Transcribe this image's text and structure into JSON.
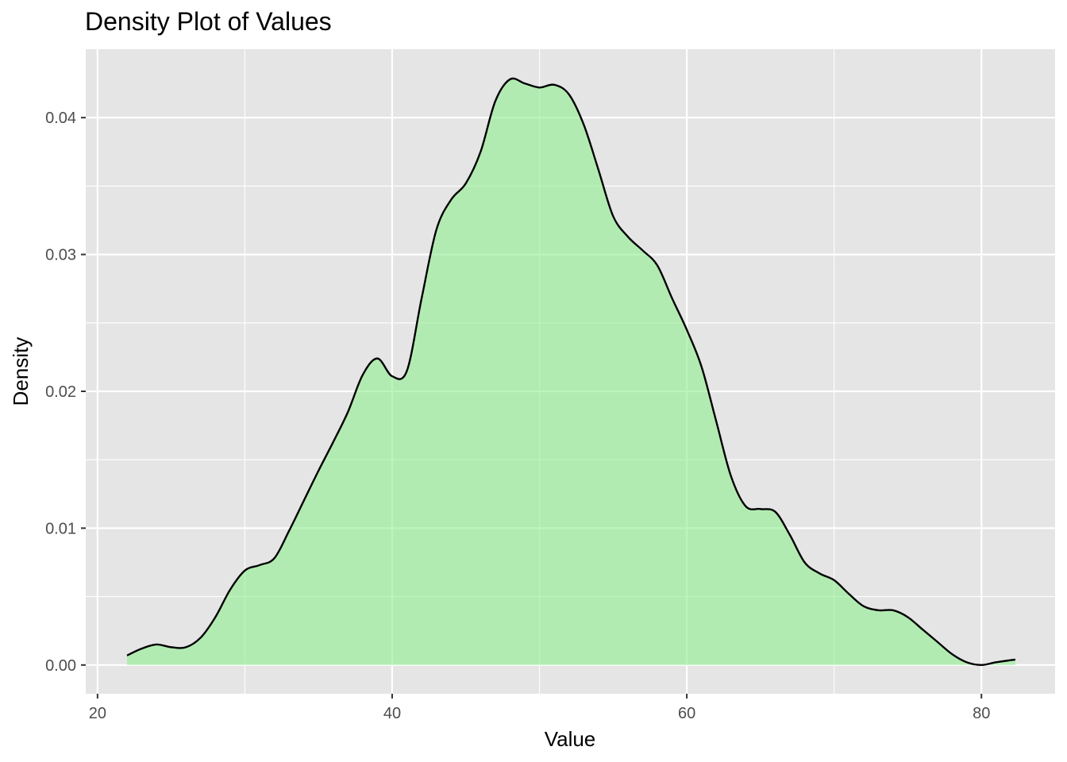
{
  "chart_data": {
    "type": "area",
    "title": "Density Plot of Values",
    "xlabel": "Value",
    "ylabel": "Density",
    "xlim": [
      19.2,
      85.0
    ],
    "ylim": [
      -0.0021,
      0.045
    ],
    "x_ticks": [
      20,
      40,
      60,
      80
    ],
    "x_tick_labels": [
      "20",
      "40",
      "60",
      "80"
    ],
    "x_minor_ticks": [
      30,
      50,
      70
    ],
    "y_ticks": [
      0.0,
      0.01,
      0.02,
      0.03,
      0.04
    ],
    "y_tick_labels": [
      "0.00",
      "0.01",
      "0.02",
      "0.03",
      "0.04"
    ],
    "y_minor_ticks": [
      0.005,
      0.015,
      0.025,
      0.035
    ],
    "grid": true,
    "legend": "none",
    "colors": {
      "panel_background": "#e5e5e5",
      "grid": "#ffffff",
      "fill": "#90ee90",
      "fill_opacity": 0.6,
      "line": "#000000"
    },
    "series": [
      {
        "x": [
          22.0,
          23.0,
          24.0,
          25.0,
          26.0,
          27.0,
          28.0,
          29.0,
          30.0,
          31.0,
          32.0,
          33.0,
          34.0,
          35.0,
          36.0,
          37.0,
          38.0,
          39.0,
          40.0,
          41.0,
          42.0,
          43.0,
          44.0,
          45.0,
          46.0,
          47.0,
          48.0,
          49.0,
          50.0,
          51.0,
          52.0,
          53.0,
          54.0,
          55.0,
          56.0,
          57.0,
          58.0,
          59.0,
          60.0,
          61.0,
          62.0,
          63.0,
          64.0,
          65.0,
          66.0,
          67.0,
          68.0,
          69.0,
          70.0,
          71.0,
          72.0,
          73.0,
          74.0,
          75.0,
          76.0,
          77.0,
          78.0,
          79.0,
          80.0,
          81.0,
          82.3
        ],
        "y": [
          0.0007,
          0.0012,
          0.0015,
          0.0013,
          0.0013,
          0.002,
          0.0035,
          0.0055,
          0.0069,
          0.0073,
          0.0078,
          0.0098,
          0.012,
          0.0142,
          0.0163,
          0.0185,
          0.0212,
          0.0224,
          0.0211,
          0.0215,
          0.0268,
          0.0318,
          0.034,
          0.0352,
          0.0375,
          0.0412,
          0.0428,
          0.0425,
          0.0422,
          0.0424,
          0.0417,
          0.0395,
          0.0362,
          0.0328,
          0.0313,
          0.0303,
          0.0292,
          0.0268,
          0.0245,
          0.0218,
          0.0178,
          0.0138,
          0.0116,
          0.0114,
          0.0112,
          0.0095,
          0.0075,
          0.0067,
          0.0062,
          0.0052,
          0.0043,
          0.004,
          0.004,
          0.0035,
          0.0026,
          0.0017,
          0.0008,
          0.0002,
          0.0,
          0.0002,
          0.0004
        ]
      }
    ]
  }
}
